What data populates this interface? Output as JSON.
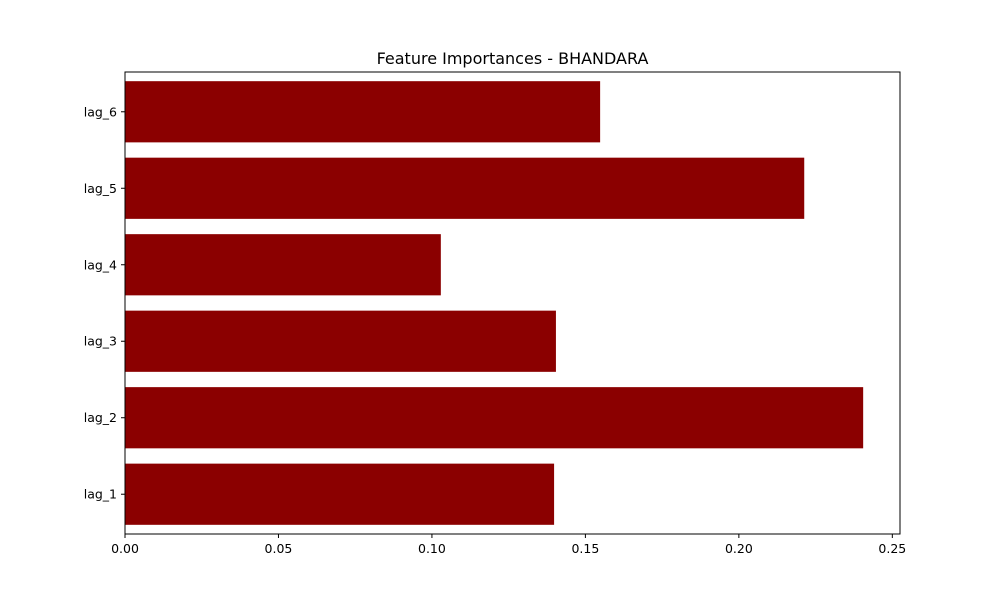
{
  "chart_data": {
    "type": "bar",
    "orientation": "horizontal",
    "title": "Feature Importances - BHANDARA",
    "xlabel": "",
    "ylabel": "",
    "categories": [
      "lag_1",
      "lag_2",
      "lag_3",
      "lag_4",
      "lag_5",
      "lag_6"
    ],
    "values": [
      0.1398,
      0.2405,
      0.1404,
      0.1029,
      0.2213,
      0.1548
    ],
    "xlim": [
      0,
      0.2525
    ],
    "xticks": [
      0.0,
      0.05,
      0.1,
      0.15,
      0.2,
      0.25
    ],
    "xtick_labels": [
      "0.00",
      "0.05",
      "0.10",
      "0.15",
      "0.20",
      "0.25"
    ],
    "grid": false,
    "legend": "none",
    "bar_color": "#8b0000"
  }
}
